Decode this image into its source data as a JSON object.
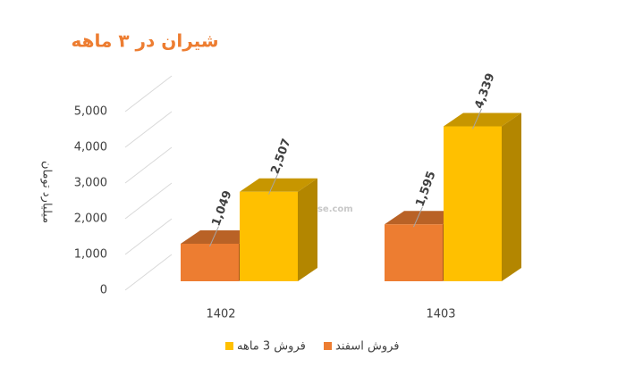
{
  "chart_data": {
    "type": "bar3d",
    "title": "شیران در ۳ ماهه",
    "y_label": "میلیارد تومان",
    "watermark": "nabzebourse.com",
    "categories": [
      "1402",
      "1403"
    ],
    "series": [
      {
        "name": "فروش اسفند",
        "color": "#ED7D31",
        "values": [
          1049,
          1595
        ],
        "value_labels": [
          "1,049",
          "1,595"
        ]
      },
      {
        "name": "فروش 3 ماهه",
        "color": "#FFC000",
        "values": [
          2507,
          4339
        ],
        "value_labels": [
          "2,507",
          "4,339"
        ]
      }
    ],
    "ylim": [
      0,
      5000
    ],
    "yticks": [
      0,
      {
        "value": 1000,
        "label": "1,000"
      },
      {
        "value": 2000,
        "label": "2,000"
      },
      {
        "value": 3000,
        "label": "3,000"
      },
      {
        "value": 4000,
        "label": "4,000"
      },
      {
        "value": 5000,
        "label": "5,000"
      }
    ],
    "grid": true
  }
}
